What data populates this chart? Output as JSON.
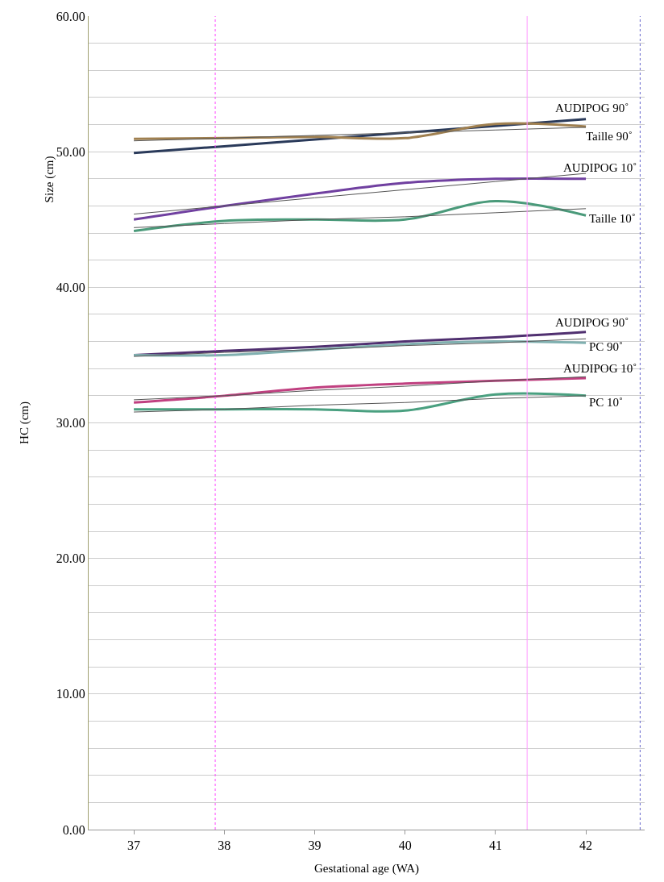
{
  "chart_data": {
    "type": "line",
    "xlabel": "Gestational age (WA)",
    "ylabel": "HC (cm)",
    "annotations": [
      "Size (cm)"
    ],
    "x": [
      37,
      38,
      39,
      40,
      41,
      42
    ],
    "xlim": [
      36.5,
      42.65
    ],
    "xticks": [
      37,
      38,
      39,
      40,
      41,
      42
    ],
    "ylim": [
      0,
      60
    ],
    "yticks": [
      {
        "value": 0,
        "label": "0.00"
      },
      {
        "value": 2,
        "label": null
      },
      {
        "value": 4,
        "label": null
      },
      {
        "value": 6,
        "label": null
      },
      {
        "value": 8,
        "label": null
      },
      {
        "value": 10,
        "label": "10.00"
      },
      {
        "value": 12,
        "label": null
      },
      {
        "value": 14,
        "label": null
      },
      {
        "value": 16,
        "label": null
      },
      {
        "value": 18,
        "label": null
      },
      {
        "value": 20,
        "label": "20.00"
      },
      {
        "value": 22,
        "label": null
      },
      {
        "value": 24,
        "label": null
      },
      {
        "value": 26,
        "label": null
      },
      {
        "value": 28,
        "label": null
      },
      {
        "value": 30,
        "label": "30.00"
      },
      {
        "value": 32,
        "label": null
      },
      {
        "value": 34,
        "label": null
      },
      {
        "value": 36,
        "label": null
      },
      {
        "value": 38,
        "label": null
      },
      {
        "value": 40,
        "label": "40.00"
      },
      {
        "value": 42,
        "label": null
      },
      {
        "value": 44,
        "label": null
      },
      {
        "value": 46,
        "label": null
      },
      {
        "value": 48,
        "label": null
      },
      {
        "value": 50,
        "label": "50.00"
      },
      {
        "value": 52,
        "label": null
      },
      {
        "value": 54,
        "label": null
      },
      {
        "value": 56,
        "label": null
      },
      {
        "value": 58,
        "label": null
      },
      {
        "value": 60,
        "label": "60.00"
      }
    ],
    "grid": "y",
    "legend": false,
    "marker": "none",
    "line_style": "solid",
    "series": [
      {
        "name": "AUDIPOG 90˚",
        "color": "#2a3a5a",
        "values": [
          49.9,
          50.4,
          50.9,
          51.4,
          51.9,
          52.4
        ]
      },
      {
        "name": "Taille 90˚",
        "color": "#a08050",
        "values": [
          50.95,
          51.0,
          51.1,
          51.0,
          52.05,
          51.85
        ]
      },
      {
        "name": "AUDIPOG 10˚",
        "color": "#7040a0",
        "values": [
          45.0,
          46.0,
          46.9,
          47.7,
          48.0,
          48.0
        ]
      },
      {
        "name": "Taille 10˚",
        "color": "#4a9a7a",
        "values": [
          44.15,
          44.9,
          45.0,
          45.0,
          46.35,
          45.3
        ]
      },
      {
        "name": "AUDIPOG 90˚",
        "color": "#503070",
        "values": [
          35.0,
          35.3,
          35.6,
          36.0,
          36.3,
          36.7
        ]
      },
      {
        "name": "PC 90˚",
        "color": "#80b0b0",
        "values": [
          35.0,
          35.0,
          35.4,
          35.8,
          36.0,
          35.9
        ]
      },
      {
        "name": "AUDIPOG 10˚",
        "color": "#c04080",
        "values": [
          31.5,
          32.0,
          32.6,
          32.9,
          33.1,
          33.3
        ]
      },
      {
        "name": "PC 10˚",
        "color": "#4aa080",
        "values": [
          31.0,
          31.0,
          31.0,
          30.9,
          32.1,
          32.0
        ]
      },
      {
        "color": "#555555",
        "values": [
          50.8,
          51.0,
          51.2,
          51.4,
          51.6,
          51.8
        ]
      },
      {
        "color": "#555555",
        "values": [
          45.4,
          46.0,
          46.6,
          47.2,
          47.8,
          48.4
        ]
      },
      {
        "color": "#555555",
        "values": [
          44.4,
          44.7,
          45.0,
          45.2,
          45.5,
          45.8
        ]
      },
      {
        "color": "#555555",
        "values": [
          34.9,
          35.2,
          35.4,
          35.7,
          35.9,
          36.2
        ]
      },
      {
        "color": "#555555",
        "values": [
          31.7,
          32.0,
          32.4,
          32.7,
          33.1,
          33.4
        ]
      },
      {
        "color": "#555555",
        "values": [
          30.8,
          31.0,
          31.3,
          31.5,
          31.8,
          32.0
        ]
      }
    ],
    "ref_lines": [
      {
        "axis": "x",
        "value": 37.9,
        "color": "#ff44ff",
        "line_style": "dotted"
      },
      {
        "axis": "x",
        "value": 41.35,
        "color": "#ff99ff",
        "line_style": "solid"
      },
      {
        "axis": "x",
        "value": 42.6,
        "color": "#6666cc",
        "line_style": "dotted"
      }
    ]
  }
}
